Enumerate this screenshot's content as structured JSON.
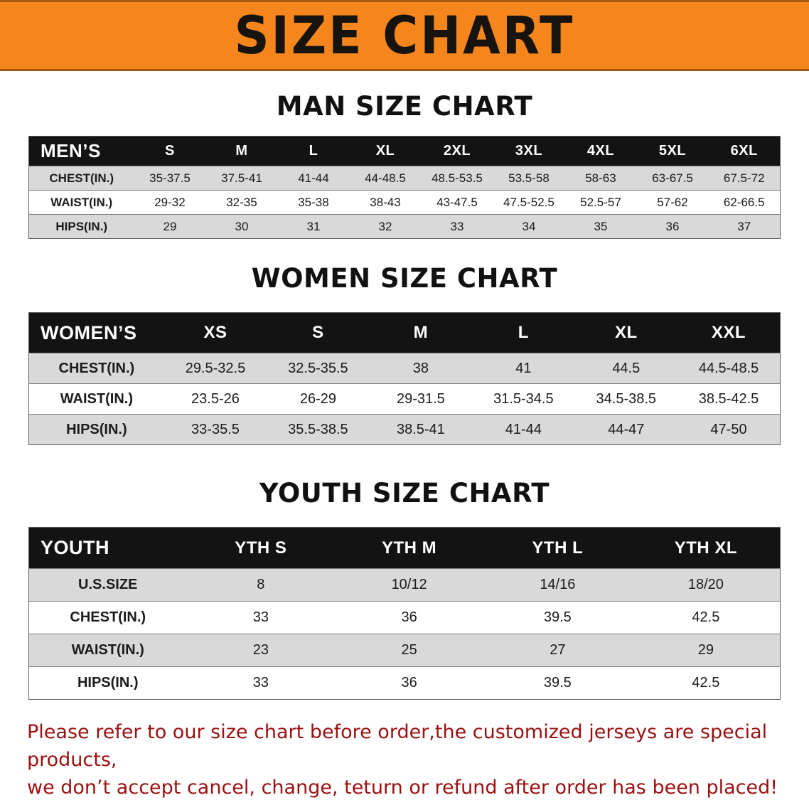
{
  "banner": {
    "title": "SIZE CHART"
  },
  "colors": {
    "banner_bg": "#F5861D",
    "header_bg": "#131313",
    "row_alt": "#D9D9D9",
    "footer_text": "#9B1010"
  },
  "sections": [
    {
      "id": "men",
      "heading": "MAN SIZE CHART",
      "corner_label": "MEN’S",
      "columns": [
        "S",
        "M",
        "L",
        "XL",
        "2XL",
        "3XL",
        "4XL",
        "5XL",
        "6XL"
      ],
      "rows": [
        {
          "label": "CHEST(IN.)",
          "values": [
            "35-37.5",
            "37.5-41",
            "41-44",
            "44-48.5",
            "48.5-53.5",
            "53.5-58",
            "58-63",
            "63-67.5",
            "67.5-72"
          ]
        },
        {
          "label": "WAIST(IN.)",
          "values": [
            "29-32",
            "32-35",
            "35-38",
            "38-43",
            "43-47.5",
            "47.5-52.5",
            "52.5-57",
            "57-62",
            "62-66.5"
          ]
        },
        {
          "label": "HIPS(IN.)",
          "values": [
            "29",
            "30",
            "31",
            "32",
            "33",
            "34",
            "35",
            "36",
            "37"
          ]
        }
      ]
    },
    {
      "id": "women",
      "heading": "WOMEN SIZE CHART",
      "corner_label": "WOMEN’S",
      "columns": [
        "XS",
        "S",
        "M",
        "L",
        "XL",
        "XXL"
      ],
      "rows": [
        {
          "label": "CHEST(IN.)",
          "values": [
            "29.5-32.5",
            "32.5-35.5",
            "38",
            "41",
            "44.5",
            "44.5-48.5"
          ]
        },
        {
          "label": "WAIST(IN.)",
          "values": [
            "23.5-26",
            "26-29",
            "29-31.5",
            "31.5-34.5",
            "34.5-38.5",
            "38.5-42.5"
          ]
        },
        {
          "label": "HIPS(IN.)",
          "values": [
            "33-35.5",
            "35.5-38.5",
            "38.5-41",
            "41-44",
            "44-47",
            "47-50"
          ]
        }
      ]
    },
    {
      "id": "youth",
      "heading": "YOUTH SIZE CHART",
      "corner_label": "YOUTH",
      "columns": [
        "YTH S",
        "YTH M",
        "YTH L",
        "YTH XL"
      ],
      "rows": [
        {
          "label": "U.S.SIZE",
          "values": [
            "8",
            "10/12",
            "14/16",
            "18/20"
          ]
        },
        {
          "label": "CHEST(IN.)",
          "values": [
            "33",
            "36",
            "39.5",
            "42.5"
          ]
        },
        {
          "label": "WAIST(IN.)",
          "values": [
            "23",
            "25",
            "27",
            "29"
          ]
        },
        {
          "label": "HIPS(IN.)",
          "values": [
            "33",
            "36",
            "39.5",
            "42.5"
          ]
        }
      ]
    }
  ],
  "footer": {
    "line1": "Please refer to our size chart before order,the customized jerseys are special products,",
    "line2": "we don’t accept cancel, change, teturn or refund after order has been placed!"
  }
}
